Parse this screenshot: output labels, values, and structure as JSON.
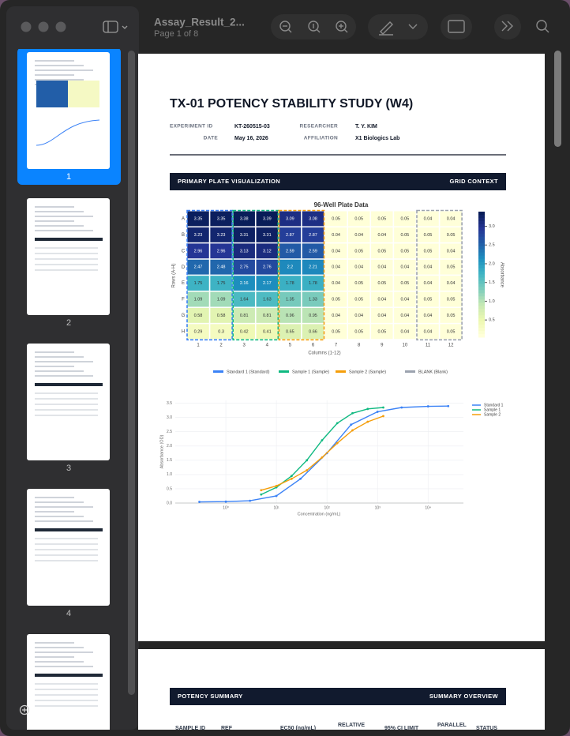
{
  "window": {
    "title": "Assay_Result_2...",
    "subtitle": "Page 1 of 8"
  },
  "sidebar": {
    "thumbnails": [
      "1",
      "2",
      "3",
      "4"
    ]
  },
  "document": {
    "title": "TX-01 POTENCY STABILITY STUDY (W4)",
    "meta": [
      {
        "label": "EXPERIMENT ID",
        "value": "KT-260515-03"
      },
      {
        "label": "RESEARCHER",
        "value": "T. Y. KIM"
      },
      {
        "label": "DATE",
        "value": "May 16, 2026"
      },
      {
        "label": "AFFILIATION",
        "value": "X1 Biologics Lab"
      }
    ],
    "section": {
      "title": "PRIMARY PLATE VISUALIZATION",
      "tag": "GRID CONTEXT"
    },
    "plate": {
      "type": "heatmap",
      "title": "96-Well Plate Data",
      "xlabel": "Columns (1-12)",
      "ylabel": "Rows (A-H)",
      "rows": [
        "A",
        "B",
        "C",
        "D",
        "E",
        "F",
        "G",
        "H"
      ],
      "columns": [
        "1",
        "2",
        "3",
        "4",
        "5",
        "6",
        "7",
        "8",
        "9",
        "10",
        "11",
        "12"
      ],
      "values": [
        [
          3.35,
          3.35,
          3.38,
          3.39,
          3.09,
          3.08,
          0.05,
          0.05,
          0.05,
          0.05,
          0.04,
          0.04
        ],
        [
          3.23,
          3.23,
          3.31,
          3.31,
          2.87,
          2.87,
          0.04,
          0.04,
          0.04,
          0.05,
          0.05,
          0.05
        ],
        [
          2.96,
          2.96,
          3.13,
          3.12,
          2.59,
          2.59,
          0.04,
          0.05,
          0.05,
          0.05,
          0.05,
          0.04
        ],
        [
          2.47,
          2.48,
          2.75,
          2.76,
          2.2,
          2.21,
          0.04,
          0.04,
          0.04,
          0.04,
          0.04,
          0.05
        ],
        [
          1.75,
          1.75,
          2.16,
          2.17,
          1.78,
          1.78,
          0.04,
          0.05,
          0.05,
          0.05,
          0.04,
          0.04
        ],
        [
          1.09,
          1.09,
          1.64,
          1.63,
          1.35,
          1.33,
          0.05,
          0.05,
          0.04,
          0.04,
          0.05,
          0.05
        ],
        [
          0.58,
          0.58,
          0.81,
          0.81,
          0.96,
          0.95,
          0.04,
          0.04,
          0.04,
          0.04,
          0.04,
          0.05
        ],
        [
          0.29,
          0.3,
          0.42,
          0.41,
          0.65,
          0.66,
          0.05,
          0.05,
          0.05,
          0.04,
          0.04,
          0.05
        ]
      ],
      "colorbar": {
        "label": "Absorbance",
        "lim": [
          0.04,
          3.39
        ],
        "ticks": [
          0.5,
          {
            "value": 1,
            "label": "1.0"
          },
          1.5,
          {
            "value": 2,
            "label": "2.0"
          },
          2.5,
          {
            "value": 3,
            "label": "3.0"
          }
        ]
      },
      "groups": [
        {
          "name": "Standard 1 (Standard)",
          "color": "#3b82f6",
          "columns": [
            "1",
            "2"
          ]
        },
        {
          "name": "Sample 1 (Sample)",
          "color": "#10b981",
          "columns": [
            "3",
            "4"
          ]
        },
        {
          "name": "Sample 2 (Sample)",
          "color": "#f59e0b",
          "columns": [
            "5",
            "6"
          ]
        },
        {
          "name": "BLANK (Blank)",
          "color": "#9ca3af",
          "columns": [
            "11",
            "12"
          ]
        }
      ]
    },
    "curve": {
      "type": "line",
      "xlabel": "Concentration (ng/mL)",
      "ylabel": "Absorbance (OD)",
      "log_x": true,
      "grid": true,
      "xlim": [
        0.1,
        50000
      ],
      "ylim": [
        0,
        3.6
      ],
      "xticks": [
        {
          "value": 1,
          "label": "10⁰"
        },
        {
          "value": 10,
          "label": "10¹"
        },
        {
          "value": 100,
          "label": "10²"
        },
        {
          "value": 1000,
          "label": "10³"
        },
        {
          "value": 10000,
          "label": "10⁴"
        }
      ],
      "yticks": [
        {
          "value": 0,
          "label": "0.0"
        },
        0.5,
        {
          "value": 1,
          "label": "1.0"
        },
        1.5,
        {
          "value": 2,
          "label": "2.0"
        },
        2.5,
        {
          "value": 3,
          "label": "3.0"
        },
        3.5
      ],
      "series": [
        {
          "name": "Standard 1",
          "color": "#3b82f6",
          "x": [
            0.3,
            1,
            3,
            10,
            30,
            100,
            300,
            1000,
            3000,
            10000,
            25000
          ],
          "values": [
            0.04,
            0.05,
            0.08,
            0.25,
            0.85,
            1.75,
            2.75,
            3.2,
            3.35,
            3.39,
            3.4
          ]
        },
        {
          "name": "Sample 1",
          "color": "#10b981",
          "x": [
            5,
            10,
            20,
            40,
            80,
            160,
            320,
            640,
            1300
          ],
          "values": [
            0.3,
            0.55,
            0.95,
            1.5,
            2.2,
            2.8,
            3.15,
            3.3,
            3.35
          ]
        },
        {
          "name": "Sample 2",
          "color": "#f59e0b",
          "x": [
            5,
            10,
            20,
            40,
            80,
            160,
            320,
            640,
            1300
          ],
          "values": [
            0.45,
            0.6,
            0.85,
            1.15,
            1.6,
            2.1,
            2.55,
            2.85,
            3.05
          ]
        }
      ]
    },
    "summary": {
      "title": "POTENCY SUMMARY",
      "tag": "SUMMARY OVERVIEW",
      "headers": [
        "SAMPLE ID",
        "REF",
        "EC50 (ng/mL)",
        "RELATIVE",
        "95% CI LIMIT",
        "PARALLEL",
        "STATUS"
      ]
    }
  }
}
